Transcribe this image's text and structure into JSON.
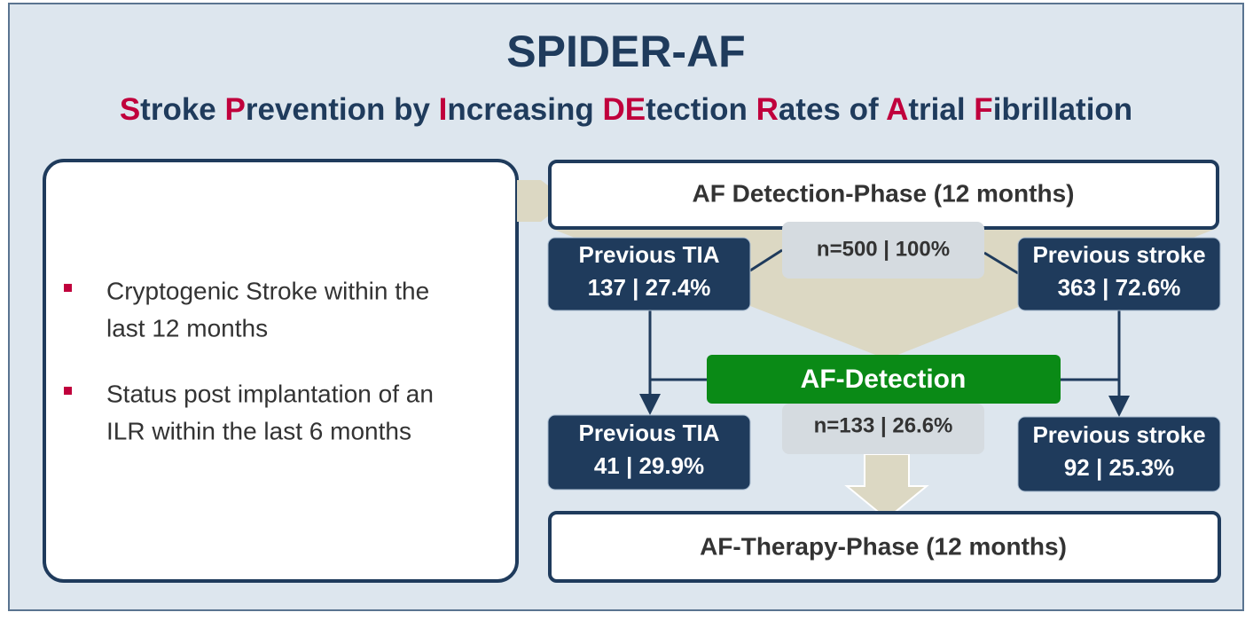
{
  "header": {
    "title": "SPIDER-AF",
    "subtitle": [
      {
        "text": "S",
        "color": "#c0003c"
      },
      {
        "text": "troke ",
        "color": "#1f3b5c"
      },
      {
        "text": "P",
        "color": "#c0003c"
      },
      {
        "text": "revention by ",
        "color": "#1f3b5c"
      },
      {
        "text": "I",
        "color": "#c0003c"
      },
      {
        "text": "ncreasing ",
        "color": "#1f3b5c"
      },
      {
        "text": "DE",
        "color": "#c0003c"
      },
      {
        "text": "tection ",
        "color": "#1f3b5c"
      },
      {
        "text": "R",
        "color": "#c0003c"
      },
      {
        "text": "ates of ",
        "color": "#1f3b5c"
      },
      {
        "text": "A",
        "color": "#c0003c"
      },
      {
        "text": "trial ",
        "color": "#1f3b5c"
      },
      {
        "text": "F",
        "color": "#c0003c"
      },
      {
        "text": "ibrillation",
        "color": "#1f3b5c"
      }
    ]
  },
  "criteria": [
    [
      "Cryptogenic Stroke within the",
      "last 12 months"
    ],
    [
      "Status post implantation of an",
      "ILR within the last 6 months"
    ]
  ],
  "flow": {
    "detection_phase": "AF Detection-Phase (12 months)",
    "total": "n=500 | 100%",
    "tia": {
      "label": "Previous TIA",
      "value": "137 | 27.4%"
    },
    "stroke": {
      "label": "Previous stroke",
      "value": "363 | 72.6%"
    },
    "af_detection": "AF-Detection",
    "detected": "n=133 | 26.6%",
    "tia_af": {
      "label": "Previous TIA",
      "value": "41 | 29.9%"
    },
    "stroke_af": {
      "label": "Previous stroke",
      "value": "92 | 25.3%"
    },
    "therapy_phase": "AF-Therapy-Phase (12 months)"
  }
}
